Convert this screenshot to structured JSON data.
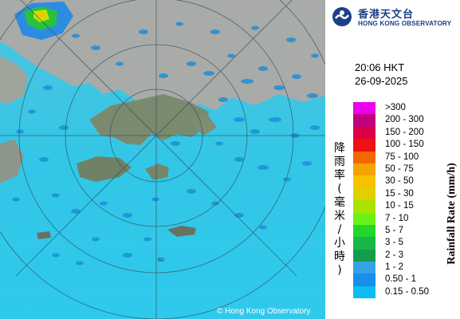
{
  "logo": {
    "name_zh": "香港天文台",
    "name_en": "HONG KONG OBSERVATORY",
    "icon": "hko-logo-icon"
  },
  "timestamp": {
    "time": "20:06 HKT",
    "date": "26-09-2025"
  },
  "legend": {
    "title_en": "Rainfall Rate (mm/h)",
    "title_zh": "降雨率(毫米/小時)",
    "items": [
      {
        "label": ">300",
        "color": "#ee00ee"
      },
      {
        "label": "200 - 300",
        "color": "#c1007e"
      },
      {
        "label": "150 - 200",
        "color": "#db0045"
      },
      {
        "label": "100 - 150",
        "color": "#ee1111"
      },
      {
        "label": "75 - 100",
        "color": "#f26700"
      },
      {
        "label": "50 - 75",
        "color": "#f5a300"
      },
      {
        "label": "30 - 50",
        "color": "#f8c100"
      },
      {
        "label": "15 - 30",
        "color": "#e0d000"
      },
      {
        "label": "10 - 15",
        "color": "#a8e400"
      },
      {
        "label": "7 - 10",
        "color": "#6cf01a"
      },
      {
        "label": "5 - 7",
        "color": "#22d72a"
      },
      {
        "label": "3 - 5",
        "color": "#19b74a"
      },
      {
        "label": "2 - 3",
        "color": "#149b4c"
      },
      {
        "label": "1 - 2",
        "color": "#35a2e6"
      },
      {
        "label": "0.50 - 1",
        "color": "#1a8ee8"
      },
      {
        "label": "0.15 - 0.50",
        "color": "#0bbcf2"
      }
    ]
  },
  "map": {
    "range_ring_label": "60",
    "copyright": "© Hong Kong Observatory"
  }
}
